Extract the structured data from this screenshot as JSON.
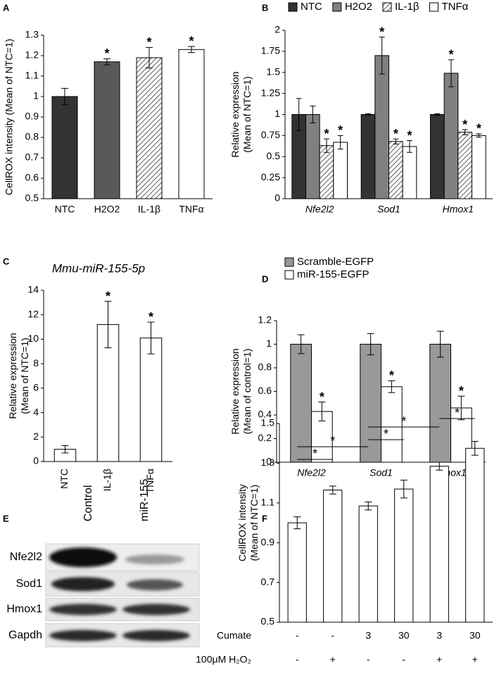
{
  "chart_data": [
    {
      "type": "bar",
      "panel": "A",
      "ylabel": [
        "CellROX intensity (Mean of NTC=1)"
      ],
      "categories": [
        "NTC",
        "H2O2",
        "IL-1β",
        "TNFα"
      ],
      "values": [
        1.0,
        1.17,
        1.19,
        1.23
      ],
      "errors": [
        0.04,
        0.015,
        0.05,
        0.015
      ],
      "colors": [
        "#333333",
        "#595959",
        "#ffffff",
        "#ffffff"
      ],
      "hatched": [
        false,
        false,
        true,
        false
      ],
      "labels": [
        null,
        "*",
        "*",
        "*"
      ],
      "ylim": [
        0.5,
        1.3
      ],
      "yticks": [
        0.5,
        0.6,
        0.7,
        0.8,
        0.9,
        1,
        1.1,
        1.2,
        1.3
      ]
    },
    {
      "type": "grouped_bar",
      "panel": "B",
      "ylabel": [
        "Relative expression",
        "(Mean of NTC=1)"
      ],
      "categories": [
        "Nfe2l2",
        "Sod1",
        "Hmox1"
      ],
      "category_style": "italic",
      "legend": "top",
      "series": [
        {
          "name": "NTC",
          "color": "#333333",
          "hatched": false,
          "values": [
            1,
            1,
            1
          ],
          "errors": [
            0.19,
            0.01,
            0.01
          ],
          "labels": [
            null,
            null,
            null
          ]
        },
        {
          "name": "H2O2",
          "color": "#808080",
          "hatched": false,
          "values": [
            1,
            1.7,
            1.49
          ],
          "errors": [
            0.1,
            0.22,
            0.16
          ],
          "labels": [
            null,
            "*",
            "*"
          ]
        },
        {
          "name": "IL-1β",
          "color": "#ffffff",
          "hatched": true,
          "values": [
            0.63,
            0.68,
            0.79
          ],
          "errors": [
            0.08,
            0.03,
            0.03
          ],
          "labels": [
            "*",
            "*",
            "*"
          ]
        },
        {
          "name": "TNFα",
          "color": "#ffffff",
          "hatched": false,
          "values": [
            0.67,
            0.62,
            0.75
          ],
          "errors": [
            0.08,
            0.07,
            0.02
          ],
          "labels": [
            "*",
            "*",
            "*"
          ]
        }
      ],
      "ylim": [
        0,
        2
      ],
      "yticks": [
        0,
        0.25,
        0.5,
        0.75,
        1,
        1.25,
        1.5,
        1.75,
        2
      ]
    },
    {
      "type": "bar",
      "panel": "C",
      "title": "Mmu-miR-155-5p",
      "ylabel": [
        "Relative expression",
        "(Mean of NTC=1)"
      ],
      "categories": [
        "NTC",
        "IL-1β",
        "TNFα"
      ],
      "category_rotate": true,
      "values": [
        1,
        11.2,
        10.1
      ],
      "errors": [
        0.3,
        1.9,
        1.3
      ],
      "colors": [
        "#ffffff",
        "#ffffff",
        "#ffffff"
      ],
      "hatched": [
        false,
        false,
        false
      ],
      "labels": [
        null,
        "*",
        "*"
      ],
      "ylim": [
        0,
        14
      ],
      "yticks": [
        0,
        2,
        4,
        6,
        8,
        10,
        12,
        14
      ]
    },
    {
      "type": "grouped_bar",
      "panel": "D",
      "ylabel": [
        "Relative expression",
        "(Mean of control=1)"
      ],
      "categories": [
        "Nfe2l2",
        "Sod1",
        "Hmox1"
      ],
      "category_style": "italic",
      "legend": "top",
      "series": [
        {
          "name": "Scramble-EGFP",
          "color": "#999999",
          "hatched": false,
          "values": [
            1,
            1,
            1
          ],
          "errors": [
            0.08,
            0.09,
            0.11
          ],
          "labels": [
            null,
            null,
            null
          ]
        },
        {
          "name": "miR-155-EGFP",
          "color": "#ffffff",
          "hatched": false,
          "values": [
            0.43,
            0.64,
            0.46
          ],
          "errors": [
            0.08,
            0.05,
            0.1
          ],
          "labels": [
            "*",
            "*",
            "*"
          ]
        }
      ],
      "ylim": [
        0,
        1.2
      ],
      "yticks": [
        0,
        0.2,
        0.4,
        0.6,
        0.8,
        1,
        1.2
      ]
    },
    {
      "type": "bar",
      "panel": "F",
      "ylabel": [
        "CellROX intensity",
        "(Mean of NTC=1)"
      ],
      "categories": [
        null,
        null,
        null,
        null,
        null,
        null
      ],
      "values": [
        1.0,
        1.165,
        1.085,
        1.17,
        1.285,
        1.375
      ],
      "errors": [
        0.03,
        0.02,
        0.02,
        0.045,
        0.02,
        0.035
      ],
      "colors": [
        "#ffffff",
        "#ffffff",
        "#ffffff",
        "#ffffff",
        "#ffffff",
        "#ffffff"
      ],
      "hatched": [
        false,
        false,
        false,
        false,
        false,
        false
      ],
      "labels": [
        null,
        null,
        null,
        null,
        null,
        null
      ],
      "brackets": [
        {
          "between": [
            0,
            1
          ],
          "label": "*"
        },
        {
          "between": [
            0,
            2
          ],
          "label": "*"
        },
        {
          "between": [
            2,
            3
          ],
          "label": "*"
        },
        {
          "between": [
            2,
            4
          ],
          "label": "*"
        },
        {
          "between": [
            4,
            5
          ],
          "label": "*"
        }
      ],
      "table": [
        {
          "label": "Cumate",
          "cells": [
            "-",
            "-",
            "3",
            "30",
            "3",
            "30"
          ]
        },
        {
          "label": "100μM H₂O₂",
          "cells": [
            "-",
            "+",
            "-",
            "-",
            "+",
            "+"
          ]
        }
      ],
      "ylim": [
        0.5,
        1.5
      ],
      "yticks": [
        0.5,
        0.7,
        0.9,
        1.1,
        1.3,
        1.5
      ]
    }
  ],
  "blot": {
    "panel": "E",
    "columns": [
      "Control",
      "miR-155"
    ],
    "rows": [
      "Nfe2l2",
      "Sod1",
      "Hmox1",
      "Gapdh"
    ]
  }
}
